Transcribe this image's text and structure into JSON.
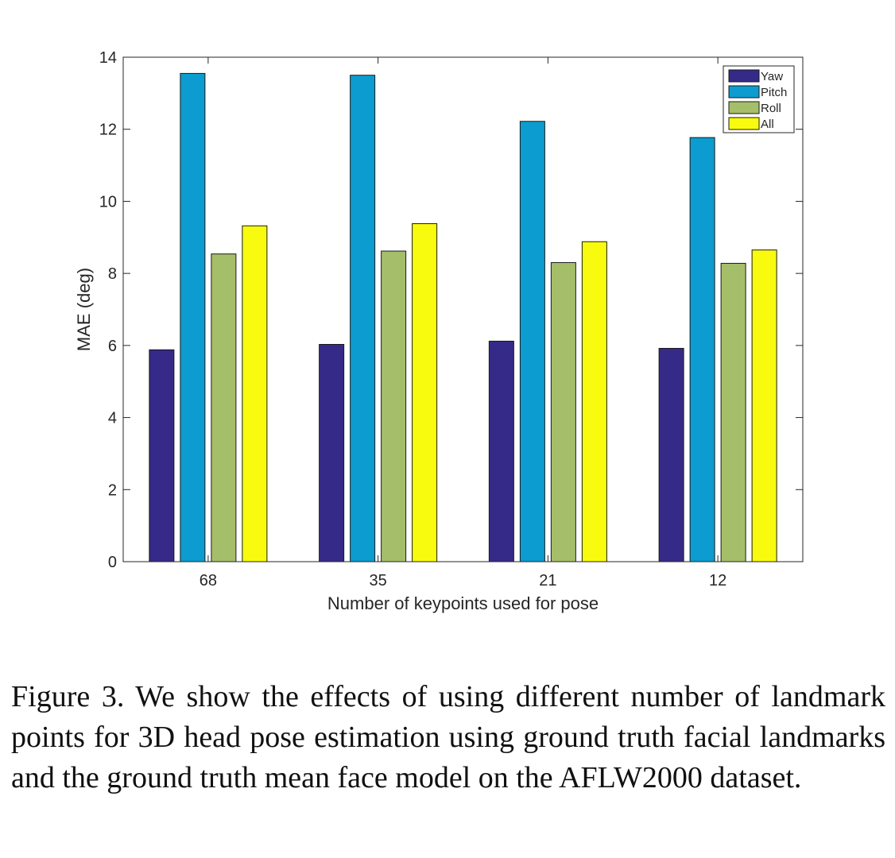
{
  "chart_data": {
    "type": "bar",
    "xlabel": "Number of keypoints used for pose",
    "ylabel": "MAE (deg)",
    "categories": [
      "68",
      "35",
      "21",
      "12"
    ],
    "ylim": [
      0,
      14
    ],
    "yticks": [
      "0",
      "2",
      "4",
      "6",
      "8",
      "10",
      "12",
      "14"
    ],
    "legend_position": "top-right",
    "grid": false,
    "series": [
      {
        "name": "Yaw",
        "color": "#352a87",
        "values": [
          5.88,
          6.03,
          6.12,
          5.92
        ]
      },
      {
        "name": "Pitch",
        "color": "#0c9ccf",
        "values": [
          13.55,
          13.5,
          12.22,
          11.77
        ]
      },
      {
        "name": "Roll",
        "color": "#a5be6a",
        "values": [
          8.54,
          8.62,
          8.3,
          8.28
        ]
      },
      {
        "name": "All",
        "color": "#f9fb0e",
        "values": [
          9.32,
          9.38,
          8.88,
          8.65
        ]
      }
    ]
  },
  "caption": "Figure 3. We show the effects of using different number of landmark points for 3D head pose estimation using ground truth facial landmarks and the ground truth mean face model on the AFLW2000 dataset."
}
